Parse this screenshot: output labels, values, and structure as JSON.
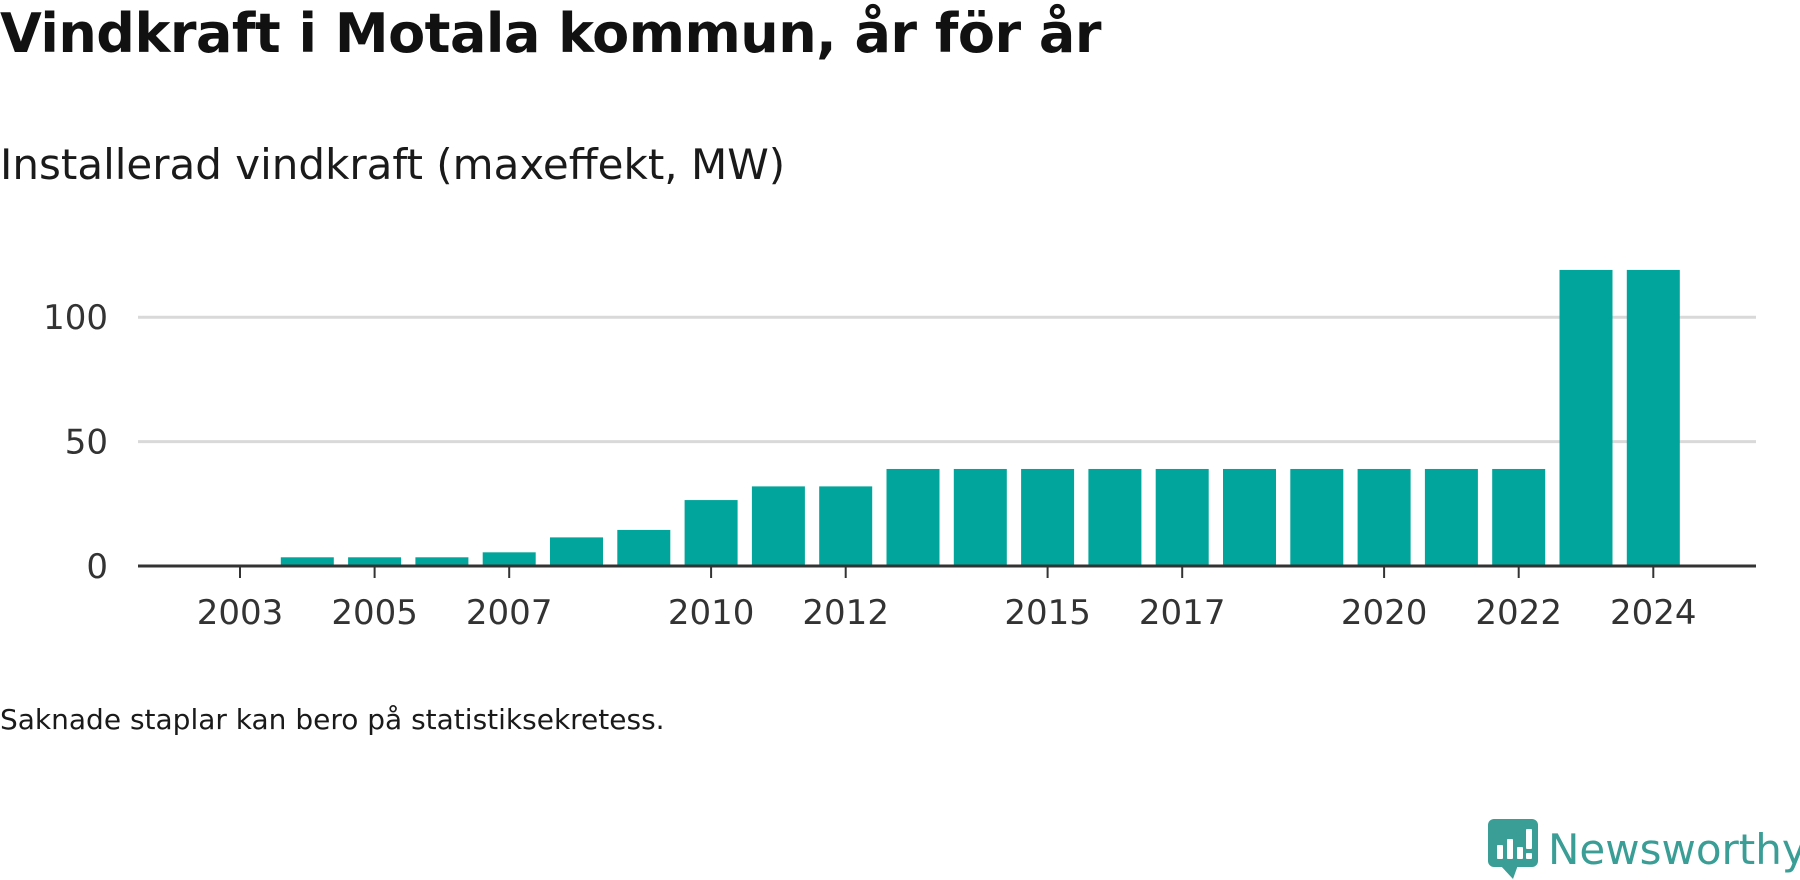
{
  "header": {
    "title": "Vindkraft i Motala kommun, år för år",
    "subtitle": "Installerad vindkraft (maxeffekt, MW)"
  },
  "footer": {
    "note": "Saknade staplar kan bero på statistiksekretess.",
    "brand": "Newsworthy"
  },
  "colors": {
    "bar": "#02a59b",
    "grid": "#d9d9d9",
    "axis": "#333333",
    "brand": "#3a9e96"
  },
  "chart_data": {
    "type": "bar",
    "title": "Vindkraft i Motala kommun, år för år",
    "subtitle": "Installerad vindkraft (maxeffekt, MW)",
    "categories": [
      "2003",
      "2004",
      "2005",
      "2006",
      "2007",
      "2008",
      "2009",
      "2010",
      "2011",
      "2012",
      "2013",
      "2014",
      "2015",
      "2016",
      "2017",
      "2018",
      "2019",
      "2020",
      "2021",
      "2022",
      "2023",
      "2024"
    ],
    "values": [
      0,
      3.5,
      3.5,
      3.5,
      5.5,
      11.5,
      14.5,
      26.5,
      32,
      32,
      39,
      39,
      39,
      39,
      39,
      39,
      39,
      39,
      39,
      39,
      119,
      119
    ],
    "x_tick_labels": [
      "2003",
      "2005",
      "2007",
      "2010",
      "2012",
      "2015",
      "2017",
      "2020",
      "2022",
      "2024"
    ],
    "y_ticks": [
      0,
      50,
      100
    ],
    "ylim": [
      0,
      125
    ],
    "grid": true,
    "legend": "none",
    "xlabel": "",
    "ylabel": ""
  }
}
